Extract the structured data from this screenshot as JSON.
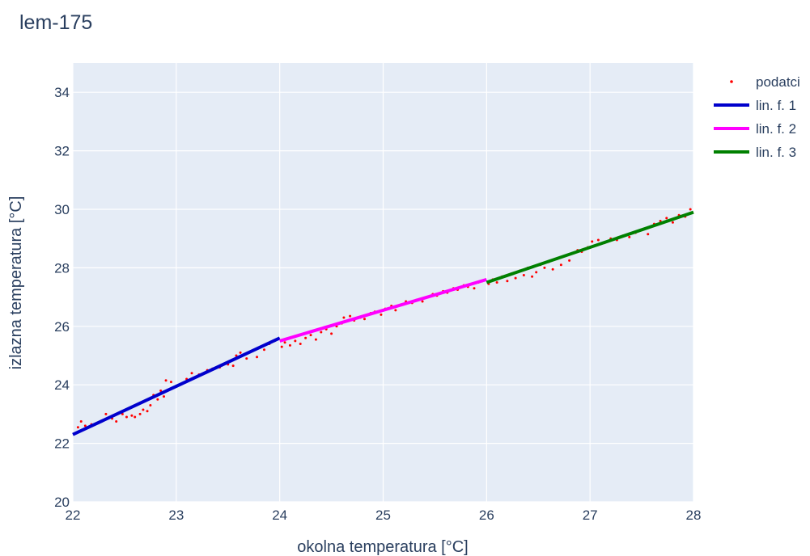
{
  "chart_data": {
    "type": "scatter",
    "title": "lem-175",
    "xlabel": "okolna temperatura [°C]",
    "ylabel": "izlazna temperatura [°C]",
    "xlim": [
      22,
      28
    ],
    "ylim": [
      20,
      35
    ],
    "x_ticks": [
      22,
      23,
      24,
      25,
      26,
      27,
      28
    ],
    "y_ticks": [
      20,
      22,
      24,
      26,
      28,
      30,
      32,
      34
    ],
    "grid": true,
    "legend_position": "top-right",
    "scatter_series": {
      "name": "podatci",
      "color": "#ff0000",
      "points": [
        [
          22.05,
          22.55
        ],
        [
          22.08,
          22.75
        ],
        [
          22.12,
          22.6
        ],
        [
          22.18,
          22.65
        ],
        [
          22.25,
          22.7
        ],
        [
          22.3,
          22.8
        ],
        [
          22.32,
          23.0
        ],
        [
          22.38,
          22.85
        ],
        [
          22.42,
          22.75
        ],
        [
          22.48,
          23.0
        ],
        [
          22.52,
          22.9
        ],
        [
          22.57,
          22.95
        ],
        [
          22.6,
          22.9
        ],
        [
          22.65,
          23.0
        ],
        [
          22.68,
          23.15
        ],
        [
          22.72,
          23.1
        ],
        [
          22.75,
          23.3
        ],
        [
          22.78,
          23.65
        ],
        [
          22.82,
          23.5
        ],
        [
          22.85,
          23.8
        ],
        [
          22.88,
          23.6
        ],
        [
          22.9,
          24.15
        ],
        [
          22.95,
          24.1
        ],
        [
          23.1,
          24.2
        ],
        [
          23.15,
          24.4
        ],
        [
          23.22,
          24.35
        ],
        [
          23.3,
          24.5
        ],
        [
          23.35,
          24.55
        ],
        [
          23.42,
          24.6
        ],
        [
          23.5,
          24.7
        ],
        [
          23.55,
          24.65
        ],
        [
          23.58,
          25.0
        ],
        [
          23.62,
          25.1
        ],
        [
          23.68,
          24.9
        ],
        [
          23.72,
          25.15
        ],
        [
          23.78,
          24.95
        ],
        [
          23.85,
          25.2
        ],
        [
          23.9,
          25.4
        ],
        [
          23.95,
          25.5
        ],
        [
          24.02,
          25.3
        ],
        [
          24.05,
          25.45
        ],
        [
          24.1,
          25.35
        ],
        [
          24.15,
          25.5
        ],
        [
          24.2,
          25.4
        ],
        [
          24.25,
          25.6
        ],
        [
          24.3,
          25.7
        ],
        [
          24.35,
          25.55
        ],
        [
          24.4,
          25.8
        ],
        [
          24.45,
          25.9
        ],
        [
          24.5,
          25.75
        ],
        [
          24.55,
          26.0
        ],
        [
          24.6,
          26.1
        ],
        [
          24.62,
          26.3
        ],
        [
          24.68,
          26.35
        ],
        [
          24.72,
          26.2
        ],
        [
          24.78,
          26.3
        ],
        [
          24.82,
          26.25
        ],
        [
          24.88,
          26.45
        ],
        [
          24.92,
          26.5
        ],
        [
          24.98,
          26.4
        ],
        [
          25.02,
          26.6
        ],
        [
          25.08,
          26.7
        ],
        [
          25.12,
          26.55
        ],
        [
          25.18,
          26.75
        ],
        [
          25.22,
          26.85
        ],
        [
          25.28,
          26.8
        ],
        [
          25.32,
          26.9
        ],
        [
          25.38,
          26.85
        ],
        [
          25.42,
          27.0
        ],
        [
          25.48,
          27.1
        ],
        [
          25.52,
          27.05
        ],
        [
          25.58,
          27.2
        ],
        [
          25.62,
          27.15
        ],
        [
          25.68,
          27.3
        ],
        [
          25.72,
          27.25
        ],
        [
          25.78,
          27.4
        ],
        [
          25.82,
          27.35
        ],
        [
          25.88,
          27.3
        ],
        [
          25.92,
          27.5
        ],
        [
          25.96,
          27.55
        ],
        [
          26.02,
          27.45
        ],
        [
          26.06,
          27.6
        ],
        [
          26.1,
          27.5
        ],
        [
          26.15,
          27.7
        ],
        [
          26.2,
          27.55
        ],
        [
          26.24,
          27.8
        ],
        [
          26.28,
          27.65
        ],
        [
          26.32,
          27.9
        ],
        [
          26.36,
          27.75
        ],
        [
          26.4,
          28.0
        ],
        [
          26.44,
          27.7
        ],
        [
          26.48,
          27.85
        ],
        [
          26.52,
          28.1
        ],
        [
          26.56,
          28.0
        ],
        [
          26.6,
          28.2
        ],
        [
          26.64,
          27.95
        ],
        [
          26.68,
          28.3
        ],
        [
          26.72,
          28.1
        ],
        [
          26.76,
          28.4
        ],
        [
          26.8,
          28.25
        ],
        [
          26.84,
          28.5
        ],
        [
          26.88,
          28.6
        ],
        [
          26.92,
          28.55
        ],
        [
          26.98,
          28.7
        ],
        [
          27.02,
          28.9
        ],
        [
          27.08,
          28.95
        ],
        [
          27.14,
          28.85
        ],
        [
          27.2,
          29.0
        ],
        [
          27.26,
          28.95
        ],
        [
          27.32,
          29.1
        ],
        [
          27.38,
          29.05
        ],
        [
          27.44,
          29.2
        ],
        [
          27.5,
          29.3
        ],
        [
          27.56,
          29.15
        ],
        [
          27.62,
          29.5
        ],
        [
          27.68,
          29.6
        ],
        [
          27.74,
          29.7
        ],
        [
          27.8,
          29.55
        ],
        [
          27.86,
          29.8
        ],
        [
          27.92,
          29.75
        ],
        [
          27.97,
          30.0
        ]
      ]
    },
    "line_series": [
      {
        "name": "lin. f. 1",
        "color": "#0000cc",
        "x": [
          22,
          24
        ],
        "y": [
          22.3,
          25.6
        ]
      },
      {
        "name": "lin. f. 2",
        "color": "#ff00ff",
        "x": [
          24,
          26
        ],
        "y": [
          25.5,
          27.6
        ]
      },
      {
        "name": "lin. f. 3",
        "color": "#008000",
        "x": [
          26,
          28
        ],
        "y": [
          27.5,
          29.9
        ]
      }
    ]
  }
}
